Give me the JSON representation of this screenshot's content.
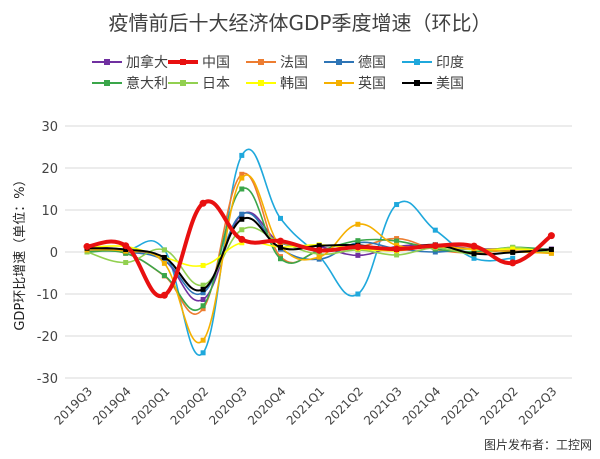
{
  "chart_data": {
    "type": "line",
    "title": "疫情前后十大经济体GDP季度增速（环比）",
    "ylabel": "GDP环比增速（单位：%）",
    "xlabel": "",
    "ylim": [
      -30,
      30
    ],
    "yticks": [
      30,
      20,
      10,
      0,
      -10,
      -20,
      -30
    ],
    "grid": true,
    "legend": "top",
    "categories": [
      "2019Q3",
      "2019Q4",
      "2020Q1",
      "2020Q2",
      "2020Q3",
      "2020Q4",
      "2021Q1",
      "2021Q2",
      "2021Q3",
      "2021Q4",
      "2022Q1",
      "2022Q2",
      "2022Q3"
    ],
    "series": [
      {
        "name": "加拿大",
        "color": "#7030a0",
        "values": [
          1.3,
          0.5,
          -2.0,
          -11.3,
          8.9,
          2.2,
          1.3,
          -0.8,
          1.3,
          1.6,
          0.8,
          0.8,
          0.7
        ]
      },
      {
        "name": "中国",
        "color": "#e81010",
        "values": [
          1.3,
          1.5,
          -10.3,
          11.6,
          3.0,
          2.6,
          0.4,
          1.2,
          0.7,
          1.5,
          1.4,
          -2.6,
          3.9
        ]
      },
      {
        "name": "法国",
        "color": "#ed7d31",
        "values": [
          0.2,
          -0.3,
          -5.7,
          -13.5,
          18.5,
          -1.1,
          0.1,
          1.1,
          3.2,
          0.6,
          -0.2,
          0.5,
          0.2
        ]
      },
      {
        "name": "德国",
        "color": "#2e75b6",
        "values": [
          0.3,
          0.0,
          -2.0,
          -9.7,
          9.0,
          0.7,
          -1.7,
          2.2,
          0.8,
          0.0,
          0.8,
          0.1,
          0.4
        ]
      },
      {
        "name": "印度",
        "color": "#1fa8dc",
        "values": [
          0.5,
          0.5,
          0.5,
          -24.0,
          23.0,
          8.0,
          -1.0,
          -10.0,
          11.3,
          5.2,
          -1.5,
          -1.5,
          null
        ]
      },
      {
        "name": "意大利",
        "color": "#3aa64a",
        "values": [
          0.0,
          -0.3,
          -5.6,
          -12.8,
          15.0,
          -1.6,
          0.3,
          2.7,
          2.6,
          0.7,
          0.1,
          1.1,
          0.5
        ]
      },
      {
        "name": "日本",
        "color": "#92d050",
        "values": [
          0.0,
          -2.5,
          0.5,
          -7.9,
          5.3,
          2.3,
          -0.5,
          0.5,
          -0.7,
          1.0,
          -0.5,
          1.1,
          -0.3
        ]
      },
      {
        "name": "韩国",
        "color": "#ffff00",
        "values": [
          1.0,
          1.3,
          -1.3,
          -3.2,
          2.2,
          1.2,
          1.7,
          0.8,
          0.3,
          1.3,
          0.6,
          0.7,
          0.3
        ]
      },
      {
        "name": "英国",
        "color": "#f5b000",
        "values": [
          0.5,
          0.2,
          -2.7,
          -21.0,
          17.6,
          1.3,
          -1.2,
          6.6,
          1.6,
          1.3,
          0.7,
          0.1,
          -0.3
        ]
      },
      {
        "name": "美国",
        "color": "#000000",
        "values": [
          0.9,
          0.6,
          -1.3,
          -8.9,
          7.8,
          1.1,
          1.5,
          1.6,
          0.6,
          1.7,
          -0.4,
          -0.1,
          0.6
        ]
      }
    ]
  },
  "watermark": "图片发布者：工控网"
}
